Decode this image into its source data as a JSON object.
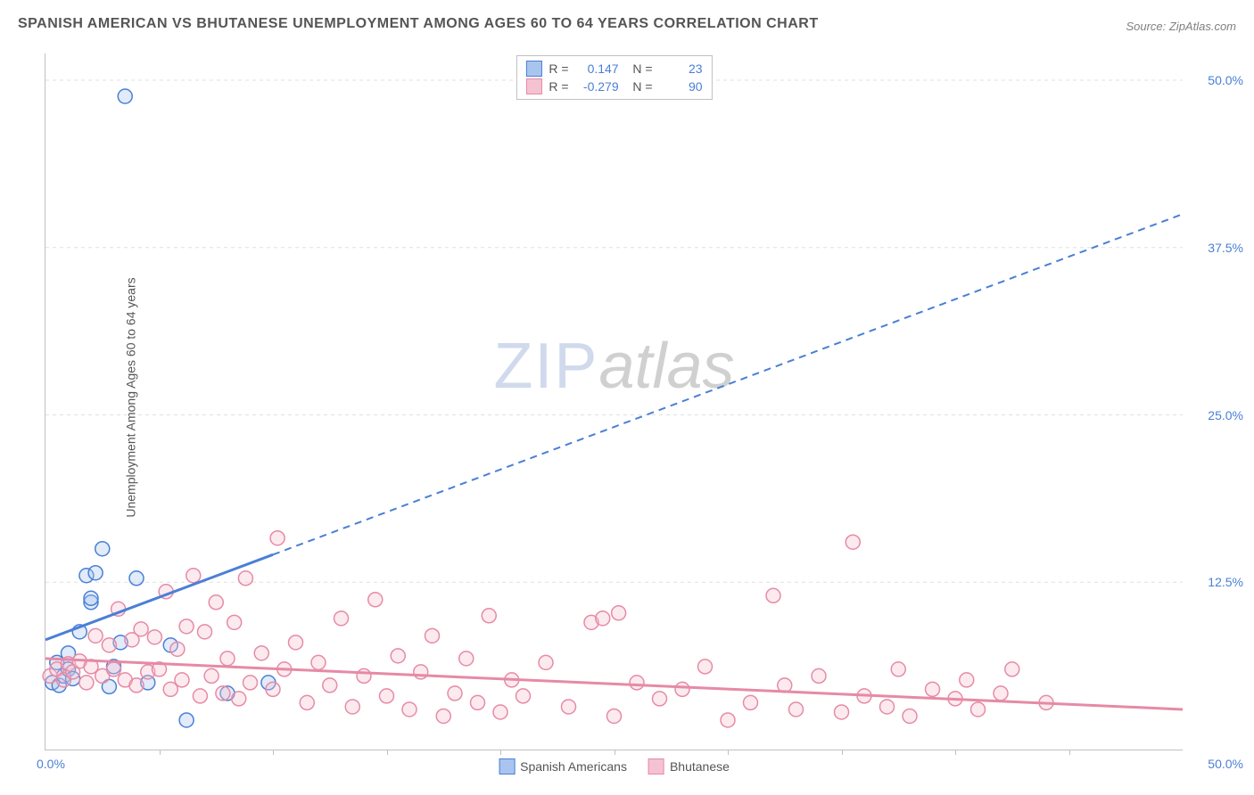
{
  "title": "SPANISH AMERICAN VS BHUTANESE UNEMPLOYMENT AMONG AGES 60 TO 64 YEARS CORRELATION CHART",
  "source": "Source: ZipAtlas.com",
  "y_axis_label": "Unemployment Among Ages 60 to 64 years",
  "watermark_a": "ZIP",
  "watermark_b": "atlas",
  "chart": {
    "type": "scatter",
    "xlim": [
      0,
      50
    ],
    "ylim": [
      0,
      52
    ],
    "x_origin_label": "0.0%",
    "x_max_label": "50.0%",
    "y_ticks": [
      12.5,
      25.0,
      37.5,
      50.0
    ],
    "y_tick_labels": [
      "12.5%",
      "25.0%",
      "37.5%",
      "50.0%"
    ],
    "x_minor_ticks": [
      5,
      10,
      15,
      20,
      25,
      30,
      35,
      40,
      45
    ],
    "grid_color": "#e0e0e0",
    "axis_color": "#c0c0c0",
    "background_color": "#ffffff",
    "marker_radius": 8,
    "marker_stroke_width": 1.5,
    "marker_fill_opacity": 0.35,
    "series": [
      {
        "name": "Spanish Americans",
        "color_stroke": "#4a7fd6",
        "color_fill": "#a9c5ef",
        "r_value": "0.147",
        "n_value": "23",
        "trend": {
          "x1": 0,
          "y1": 8.2,
          "x2": 50,
          "y2": 40.0,
          "solid_until_x": 10
        },
        "points": [
          [
            0.3,
            5.0
          ],
          [
            0.5,
            6.5
          ],
          [
            0.6,
            4.8
          ],
          [
            0.8,
            5.5
          ],
          [
            1.0,
            6.0
          ],
          [
            1.0,
            7.2
          ],
          [
            1.2,
            5.3
          ],
          [
            1.5,
            8.8
          ],
          [
            1.8,
            13.0
          ],
          [
            2.0,
            11.0
          ],
          [
            2.0,
            11.3
          ],
          [
            2.2,
            13.2
          ],
          [
            2.5,
            15.0
          ],
          [
            2.8,
            4.7
          ],
          [
            3.0,
            6.2
          ],
          [
            3.3,
            8.0
          ],
          [
            3.5,
            48.8
          ],
          [
            4.0,
            12.8
          ],
          [
            4.5,
            5.0
          ],
          [
            5.5,
            7.8
          ],
          [
            6.2,
            2.2
          ],
          [
            8.0,
            4.2
          ],
          [
            9.8,
            5.0
          ]
        ]
      },
      {
        "name": "Bhutanese",
        "color_stroke": "#e68aa5",
        "color_fill": "#f5c2d2",
        "r_value": "-0.279",
        "n_value": "90",
        "trend": {
          "x1": 0,
          "y1": 6.8,
          "x2": 50,
          "y2": 3.0,
          "solid_until_x": 50
        },
        "points": [
          [
            0.2,
            5.5
          ],
          [
            0.5,
            6.0
          ],
          [
            0.8,
            5.2
          ],
          [
            1.0,
            6.4
          ],
          [
            1.2,
            5.8
          ],
          [
            1.5,
            6.6
          ],
          [
            1.8,
            5.0
          ],
          [
            2.0,
            6.2
          ],
          [
            2.2,
            8.5
          ],
          [
            2.5,
            5.5
          ],
          [
            2.8,
            7.8
          ],
          [
            3.0,
            6.0
          ],
          [
            3.2,
            10.5
          ],
          [
            3.5,
            5.2
          ],
          [
            3.8,
            8.2
          ],
          [
            4.0,
            4.8
          ],
          [
            4.2,
            9.0
          ],
          [
            4.5,
            5.8
          ],
          [
            4.8,
            8.4
          ],
          [
            5.0,
            6.0
          ],
          [
            5.3,
            11.8
          ],
          [
            5.5,
            4.5
          ],
          [
            5.8,
            7.5
          ],
          [
            6.0,
            5.2
          ],
          [
            6.2,
            9.2
          ],
          [
            6.5,
            13.0
          ],
          [
            6.8,
            4.0
          ],
          [
            7.0,
            8.8
          ],
          [
            7.3,
            5.5
          ],
          [
            7.5,
            11.0
          ],
          [
            7.8,
            4.2
          ],
          [
            8.0,
            6.8
          ],
          [
            8.3,
            9.5
          ],
          [
            8.5,
            3.8
          ],
          [
            8.8,
            12.8
          ],
          [
            9.0,
            5.0
          ],
          [
            9.5,
            7.2
          ],
          [
            10.0,
            4.5
          ],
          [
            10.2,
            15.8
          ],
          [
            10.5,
            6.0
          ],
          [
            11.0,
            8.0
          ],
          [
            11.5,
            3.5
          ],
          [
            12.0,
            6.5
          ],
          [
            12.5,
            4.8
          ],
          [
            13.0,
            9.8
          ],
          [
            13.5,
            3.2
          ],
          [
            14.0,
            5.5
          ],
          [
            14.5,
            11.2
          ],
          [
            15.0,
            4.0
          ],
          [
            15.5,
            7.0
          ],
          [
            16.0,
            3.0
          ],
          [
            16.5,
            5.8
          ],
          [
            17.0,
            8.5
          ],
          [
            17.5,
            2.5
          ],
          [
            18.0,
            4.2
          ],
          [
            18.5,
            6.8
          ],
          [
            19.0,
            3.5
          ],
          [
            19.5,
            10.0
          ],
          [
            20.0,
            2.8
          ],
          [
            20.5,
            5.2
          ],
          [
            21.0,
            4.0
          ],
          [
            22.0,
            6.5
          ],
          [
            23.0,
            3.2
          ],
          [
            24.0,
            9.5
          ],
          [
            24.5,
            9.8
          ],
          [
            25.0,
            2.5
          ],
          [
            25.2,
            10.2
          ],
          [
            26.0,
            5.0
          ],
          [
            27.0,
            3.8
          ],
          [
            28.0,
            4.5
          ],
          [
            29.0,
            6.2
          ],
          [
            30.0,
            2.2
          ],
          [
            31.0,
            3.5
          ],
          [
            32.0,
            11.5
          ],
          [
            32.5,
            4.8
          ],
          [
            33.0,
            3.0
          ],
          [
            34.0,
            5.5
          ],
          [
            35.0,
            2.8
          ],
          [
            35.5,
            15.5
          ],
          [
            36.0,
            4.0
          ],
          [
            37.0,
            3.2
          ],
          [
            37.5,
            6.0
          ],
          [
            38.0,
            2.5
          ],
          [
            39.0,
            4.5
          ],
          [
            40.0,
            3.8
          ],
          [
            40.5,
            5.2
          ],
          [
            41.0,
            3.0
          ],
          [
            42.0,
            4.2
          ],
          [
            42.5,
            6.0
          ],
          [
            44.0,
            3.5
          ]
        ]
      }
    ]
  },
  "legend_bottom": [
    {
      "label": "Spanish Americans",
      "fill": "#a9c5ef",
      "stroke": "#4a7fd6"
    },
    {
      "label": "Bhutanese",
      "fill": "#f5c2d2",
      "stroke": "#e68aa5"
    }
  ]
}
